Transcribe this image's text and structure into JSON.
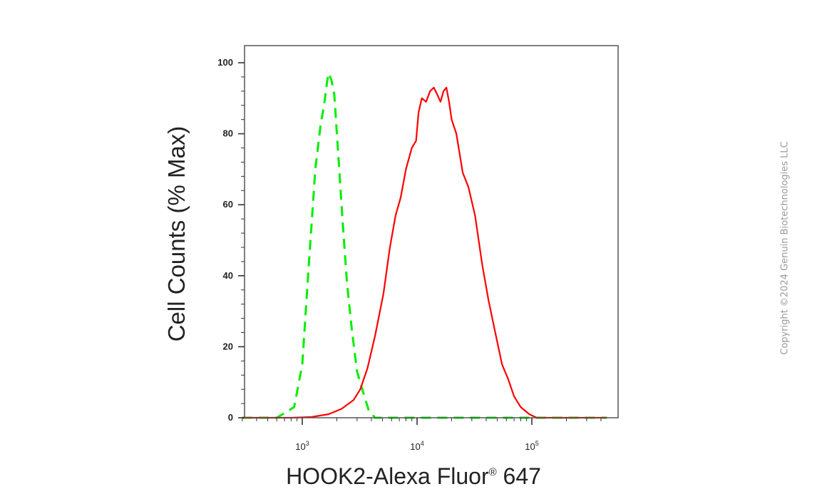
{
  "chart_data": {
    "type": "line",
    "ylabel": "Cell Counts (% Max)",
    "xlabel_main": "HOOK2-Alexa Fluor",
    "xlabel_reg": "®",
    "xlabel_tail": " 647",
    "x_scale": "log",
    "xlim": [
      300,
      450000
    ],
    "ylim": [
      0,
      104
    ],
    "y_ticks": [
      "0",
      "20",
      "40",
      "60",
      "80",
      "100"
    ],
    "x_ticks": [
      {
        "value": 1000,
        "base": "10",
        "exp": "3"
      },
      {
        "value": 10000,
        "base": "10",
        "exp": "4"
      },
      {
        "value": 100000,
        "base": "10",
        "exp": "5"
      }
    ],
    "grid": false,
    "series": [
      {
        "color": "#00ee00",
        "style": "dashed",
        "points": [
          [
            300,
            0
          ],
          [
            600,
            0
          ],
          [
            850,
            3
          ],
          [
            1000,
            15
          ],
          [
            1150,
            45
          ],
          [
            1300,
            70
          ],
          [
            1450,
            83
          ],
          [
            1550,
            88
          ],
          [
            1650,
            95
          ],
          [
            1700,
            97
          ],
          [
            1800,
            95
          ],
          [
            1900,
            91
          ],
          [
            2050,
            75
          ],
          [
            2250,
            55
          ],
          [
            2450,
            38
          ],
          [
            2700,
            25
          ],
          [
            3000,
            13
          ],
          [
            3400,
            7
          ],
          [
            3800,
            2
          ],
          [
            4300,
            0
          ],
          [
            450000,
            0
          ]
        ]
      },
      {
        "color": "#ff0000",
        "style": "solid",
        "points": [
          [
            300,
            0
          ],
          [
            800,
            0
          ],
          [
            1200,
            0.2
          ],
          [
            1700,
            1
          ],
          [
            2200,
            2.5
          ],
          [
            2800,
            5
          ],
          [
            3200,
            8
          ],
          [
            3700,
            14
          ],
          [
            4300,
            23
          ],
          [
            5100,
            35
          ],
          [
            5800,
            48
          ],
          [
            6500,
            57
          ],
          [
            7200,
            62
          ],
          [
            8000,
            70
          ],
          [
            9000,
            76
          ],
          [
            9800,
            78
          ],
          [
            10300,
            86
          ],
          [
            11000,
            90
          ],
          [
            12000,
            89
          ],
          [
            13000,
            92
          ],
          [
            14000,
            93
          ],
          [
            15000,
            91
          ],
          [
            16000,
            89
          ],
          [
            17000,
            92
          ],
          [
            18000,
            93
          ],
          [
            19000,
            89
          ],
          [
            20000,
            84
          ],
          [
            22000,
            80
          ],
          [
            25000,
            69
          ],
          [
            28000,
            65
          ],
          [
            32000,
            57
          ],
          [
            37000,
            43
          ],
          [
            42000,
            33
          ],
          [
            48000,
            24
          ],
          [
            55000,
            15
          ],
          [
            62000,
            11
          ],
          [
            70000,
            6
          ],
          [
            80000,
            3
          ],
          [
            95000,
            1
          ],
          [
            110000,
            0
          ],
          [
            450000,
            0
          ]
        ]
      }
    ]
  },
  "copyright": "Copyright ©2024 Genuin Biotechnologies LLC"
}
